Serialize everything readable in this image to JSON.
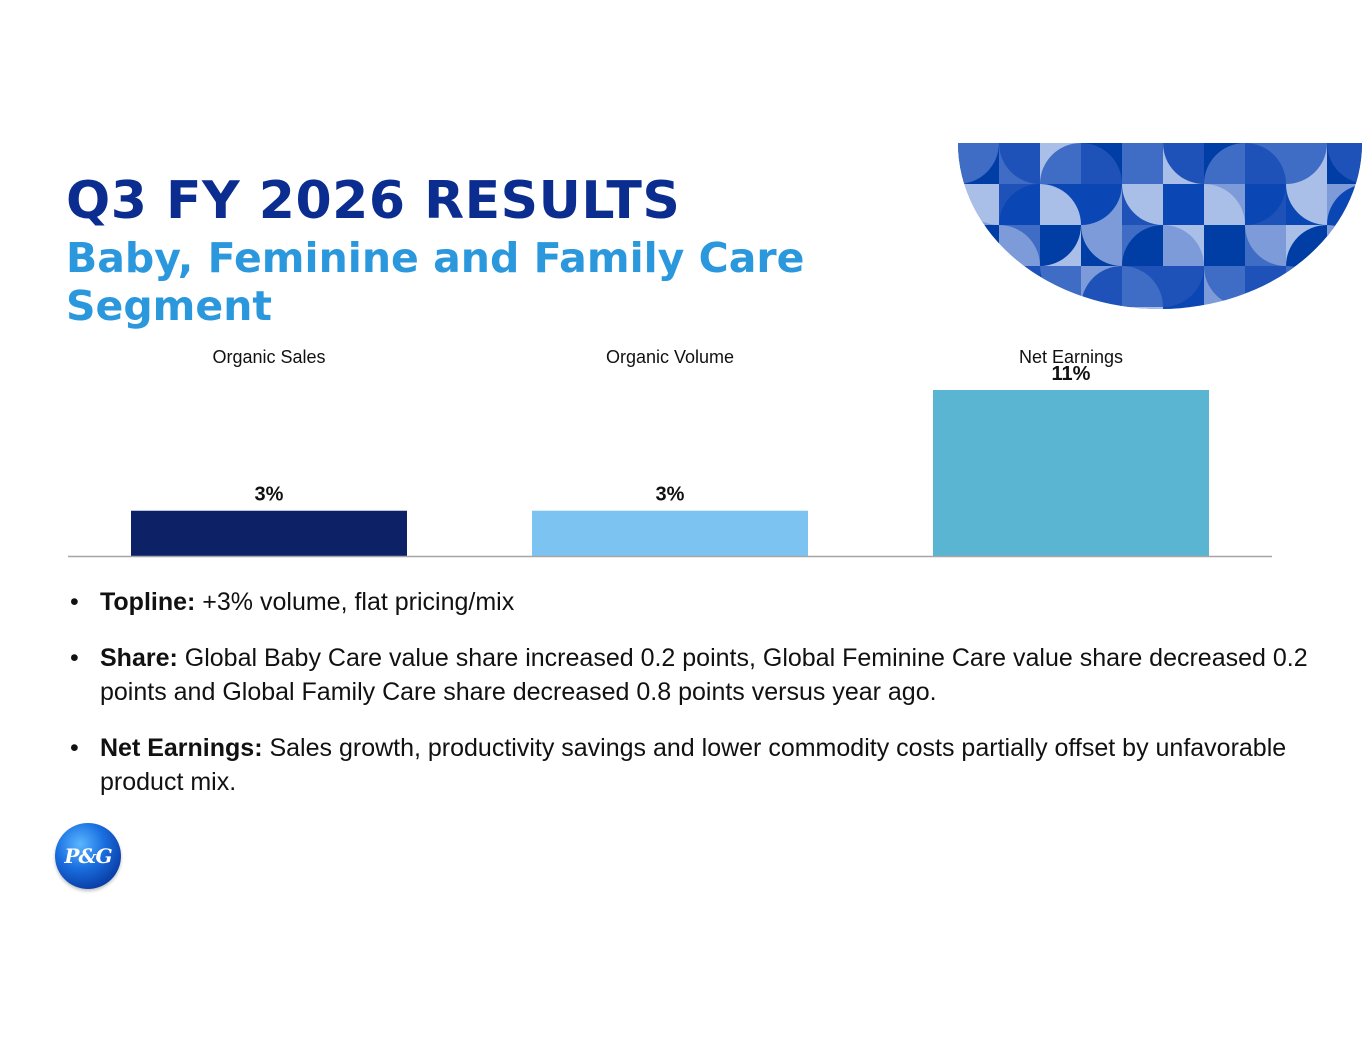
{
  "header": {
    "title": "Q3 FY 2026 RESULTS",
    "subtitle": "Baby, Feminine and Family Care Segment"
  },
  "chart_data": {
    "type": "bar",
    "categories": [
      "Organic Sales",
      "Organic Volume",
      "Net Earnings"
    ],
    "values": [
      3,
      3,
      11
    ],
    "data_labels": [
      "3%",
      "3%",
      "11%"
    ],
    "colors": [
      "#0d2266",
      "#7cc3f2",
      "#5ab5d3"
    ],
    "title": "",
    "xlabel": "",
    "ylabel": "",
    "ylim": [
      0,
      11
    ]
  },
  "bullets": [
    {
      "label": "Topline:",
      "text": " +3% volume, flat pricing/mix"
    },
    {
      "label": "Share:",
      "text": " Global Baby Care value share increased 0.2 points, Global Feminine Care value share decreased 0.2 points and Global Family Care share decreased 0.8 points versus year ago."
    },
    {
      "label": "Net Earnings:",
      "text": " Sales growth, productivity savings and lower commodity costs partially offset by unfavorable product mix."
    }
  ],
  "bullet_char": "•",
  "logo": {
    "text": "P&G",
    "icon": "pg-logo-icon"
  },
  "colors": {
    "title": "#0a2d8f",
    "subtitle": "#2b98dd",
    "axis": "#a6a6a6"
  }
}
